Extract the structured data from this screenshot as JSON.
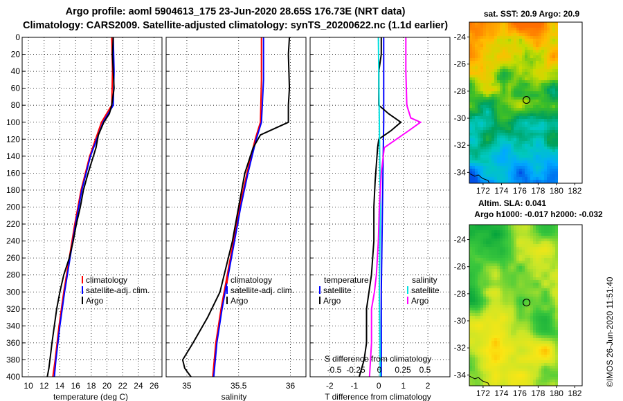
{
  "page": {
    "title_line1": "Argo profile: aoml 5904613_175 23-Jun-2020 28.65S 176.73E (NRT data)",
    "title_line2": "Climatology: CARS2009. Satellite-adjusted climatology: synTS_20200622.nc (1.1d earlier)",
    "stamp": "©IMOS 26-Jun-2020 11:51:40"
  },
  "chart_data": [
    {
      "id": "temperature",
      "type": "line",
      "xlabel": "temperature (deg C)",
      "ylabel": "",
      "xlim": [
        9.2,
        27
      ],
      "ylim": [
        400,
        0
      ],
      "xticks": [
        10,
        12,
        14,
        16,
        18,
        20,
        22,
        24,
        26
      ],
      "yticks": [
        0,
        20,
        40,
        60,
        80,
        100,
        120,
        140,
        160,
        180,
        200,
        220,
        240,
        260,
        280,
        300,
        320,
        340,
        360,
        380,
        400
      ],
      "grid": true,
      "legend": [
        "climatology",
        "satellite-adj. clim.",
        "Argo"
      ],
      "series": [
        {
          "name": "climatology",
          "color": "#ff0000",
          "depth": [
            0,
            40,
            80,
            100,
            140,
            180,
            220,
            260,
            300,
            340,
            380,
            400
          ],
          "values": [
            20.6,
            20.7,
            20.6,
            19.3,
            17.8,
            16.7,
            15.9,
            15.2,
            14.5,
            13.9,
            13.4,
            13.1
          ]
        },
        {
          "name": "satellite-adj. clim.",
          "color": "#0000ff",
          "depth": [
            0,
            40,
            80,
            100,
            140,
            180,
            220,
            260,
            300,
            340,
            380,
            400
          ],
          "values": [
            20.8,
            20.9,
            20.8,
            19.5,
            17.9,
            16.8,
            16.0,
            15.3,
            14.6,
            14.0,
            13.5,
            13.3
          ]
        },
        {
          "name": "Argo",
          "color": "#000000",
          "depth": [
            0,
            20,
            40,
            60,
            80,
            90,
            100,
            115,
            130,
            145,
            160,
            180,
            200,
            220,
            240,
            260,
            280,
            300,
            320,
            340,
            360,
            375,
            390,
            400
          ],
          "values": [
            20.8,
            20.7,
            20.8,
            20.9,
            20.6,
            20.3,
            19.6,
            18.9,
            18.6,
            18.1,
            17.6,
            17.0,
            16.6,
            16.1,
            15.7,
            15.2,
            14.5,
            14.0,
            13.6,
            13.3,
            13.0,
            12.8,
            12.6,
            12.4
          ]
        }
      ]
    },
    {
      "id": "salinity",
      "type": "line",
      "xlabel": "salinity",
      "ylabel": "",
      "xlim": [
        34.8,
        36.15
      ],
      "ylim": [
        400,
        0
      ],
      "xticks": [
        35,
        35.5,
        36
      ],
      "yticks": [
        0,
        20,
        40,
        60,
        80,
        100,
        120,
        140,
        160,
        180,
        200,
        220,
        240,
        260,
        280,
        300,
        320,
        340,
        360,
        380,
        400
      ],
      "grid": true,
      "legend": [
        "climatology",
        "satellite-adj. clim.",
        "Argo"
      ],
      "series": [
        {
          "name": "climatology",
          "color": "#ff0000",
          "depth": [
            0,
            50,
            100,
            120,
            160,
            200,
            240,
            280,
            320,
            360,
            400
          ],
          "values": [
            35.72,
            35.72,
            35.71,
            35.66,
            35.58,
            35.51,
            35.45,
            35.39,
            35.33,
            35.28,
            35.25
          ]
        },
        {
          "name": "satellite-adj. clim.",
          "color": "#0000ff",
          "depth": [
            0,
            50,
            100,
            120,
            160,
            200,
            240,
            280,
            320,
            360,
            400
          ],
          "values": [
            35.74,
            35.74,
            35.72,
            35.67,
            35.59,
            35.52,
            35.46,
            35.4,
            35.34,
            35.29,
            35.26
          ]
        },
        {
          "name": "Argo",
          "color": "#000000",
          "depth": [
            0,
            20,
            60,
            80,
            100,
            115,
            130,
            160,
            200,
            240,
            270,
            300,
            330,
            360,
            380,
            390,
            400
          ],
          "values": [
            35.99,
            35.98,
            35.99,
            35.98,
            35.98,
            35.71,
            35.64,
            35.56,
            35.5,
            35.44,
            35.38,
            35.32,
            35.2,
            35.06,
            34.96,
            34.98,
            35.04
          ]
        }
      ]
    },
    {
      "id": "difference",
      "type": "line",
      "xlabel": "T difference from climatology",
      "xlabel2": "S difference from climatology",
      "xlim": [
        -2.8,
        2.9
      ],
      "ylim": [
        400,
        0
      ],
      "xticks": [
        -2,
        -1,
        0,
        1,
        2
      ],
      "xticks2": [
        -0.5,
        -0.25,
        0,
        0.25,
        0.5
      ],
      "yticks": [
        0,
        20,
        40,
        60,
        80,
        100,
        120,
        140,
        160,
        180,
        200,
        220,
        240,
        260,
        280,
        300,
        320,
        340,
        360,
        380,
        400
      ],
      "grid": true,
      "legend_headers": [
        "temperature",
        "salinity"
      ],
      "legend": [
        "satellite",
        "Argo",
        "satellite",
        "Argo"
      ],
      "series": [
        {
          "name": "temperature satellite",
          "color": "#0000ff",
          "depth": [
            0,
            100,
            200,
            300,
            400
          ],
          "values": [
            0.2,
            0.2,
            0.15,
            0.1,
            0.1
          ]
        },
        {
          "name": "temperature Argo",
          "color": "#000000",
          "depth": [
            0,
            20,
            40,
            60,
            80,
            90,
            100,
            110,
            120,
            130,
            150,
            170,
            200,
            240,
            280,
            320,
            360,
            380,
            400
          ],
          "values": [
            0.1,
            0.1,
            0.0,
            0.0,
            0.0,
            0.4,
            0.9,
            0.5,
            0.0,
            -0.05,
            -0.1,
            -0.15,
            -0.2,
            -0.2,
            -0.3,
            -0.5,
            -0.5,
            -0.6,
            -0.8
          ]
        },
        {
          "name": "salinity satellite",
          "color": "#00e0e0",
          "depth": [
            0,
            100,
            200,
            300,
            400
          ],
          "values": [
            -0.01,
            0.0,
            0.01,
            0.0,
            0.01
          ]
        },
        {
          "name": "salinity Argo",
          "color": "#ff00ff",
          "depth": [
            0,
            40,
            80,
            95,
            100,
            110,
            130,
            160,
            200,
            240,
            280,
            300,
            320,
            360,
            400
          ],
          "values": [
            0.27,
            0.27,
            0.28,
            0.32,
            0.42,
            0.3,
            0.05,
            0.02,
            0.0,
            -0.01,
            -0.03,
            -0.05,
            -0.08,
            -0.08,
            -0.1
          ]
        }
      ]
    },
    {
      "id": "sst-map",
      "type": "heatmap",
      "title": "sat. SST: 20.9 Argo: 20.9",
      "xlim": [
        170.5,
        182.8
      ],
      "ylim": [
        -34.8,
        -22.9
      ],
      "xticks": [
        172,
        174,
        176,
        178,
        180,
        182
      ],
      "yticks": [
        -24,
        -26,
        -28,
        -30,
        -32,
        -34
      ],
      "marker": {
        "lon": 176.73,
        "lat": -28.65
      }
    },
    {
      "id": "sla-map",
      "type": "heatmap",
      "title": "Altim. SLA: 0.041",
      "subtitle": "Argo h1000: -0.017 h2000: -0.032",
      "xlim": [
        170.5,
        182.8
      ],
      "ylim": [
        -34.8,
        -22.9
      ],
      "xticks": [
        172,
        174,
        176,
        178,
        180,
        182
      ],
      "yticks": [
        -24,
        -26,
        -28,
        -30,
        -32,
        -34
      ],
      "marker": {
        "lon": 176.73,
        "lat": -28.65
      }
    }
  ]
}
